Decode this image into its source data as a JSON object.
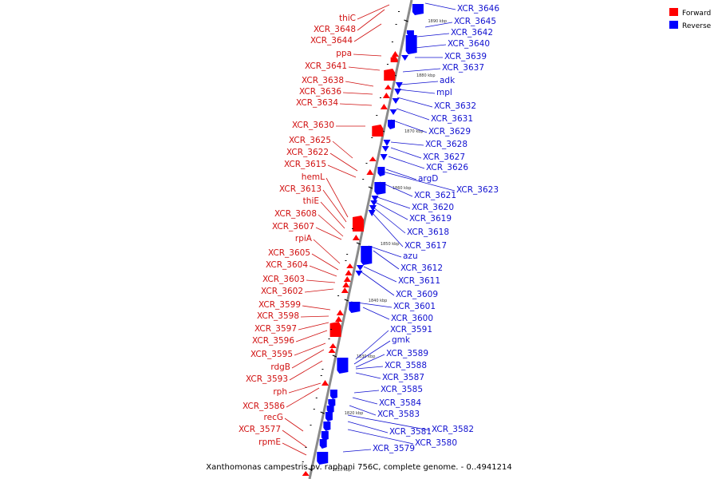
{
  "caption": "Xanthomonas campestris pv. raphani 756C, complete genome. - 0..4941214",
  "colors": {
    "forward": "#ff0000",
    "reverse": "#0000ff",
    "forward_label": "#d01010",
    "reverse_label": "#1010d0",
    "backbone": "#888888"
  },
  "legend": [
    {
      "name": "Forward",
      "color": "#ff0000"
    },
    {
      "name": "Reverse",
      "color": "#0000ff"
    }
  ],
  "ticks": [
    "1890 kbp",
    "1880 kbp",
    "1870 kbp",
    "1860 kbp",
    "1850 kbp",
    "1840 kbp",
    "1830 kbp",
    "1820 kbp",
    "1810 kbp"
  ],
  "forward_genes": [
    "thiC",
    "XCR_3648",
    "XCR_3644",
    "ppa",
    "XCR_3641",
    "XCR_3638",
    "XCR_3636",
    "XCR_3634",
    "XCR_3630",
    "XCR_3625",
    "XCR_3622",
    "XCR_3615",
    "hemL",
    "XCR_3613",
    "thiE",
    "XCR_3608",
    "XCR_3607",
    "rpiA",
    "XCR_3605",
    "XCR_3604",
    "XCR_3603",
    "XCR_3602",
    "XCR_3599",
    "XCR_3598",
    "XCR_3597",
    "XCR_3596",
    "XCR_3595",
    "rdgB",
    "XCR_3593",
    "rph",
    "XCR_3586",
    "recG",
    "XCR_3577",
    "rpmE"
  ],
  "reverse_genes": [
    "XCR_3646",
    "XCR_3645",
    "XCR_3642",
    "XCR_3640",
    "XCR_3639",
    "XCR_3637",
    "adk",
    "mpl",
    "XCR_3632",
    "XCR_3631",
    "XCR_3629",
    "XCR_3628",
    "XCR_3627",
    "XCR_3626",
    "argD",
    "XCR_3623",
    "XCR_3621",
    "XCR_3620",
    "XCR_3619",
    "XCR_3618",
    "XCR_3617",
    "azu",
    "XCR_3612",
    "XCR_3611",
    "XCR_3609",
    "XCR_3601",
    "XCR_3600",
    "XCR_3591",
    "gmk",
    "XCR_3589",
    "XCR_3588",
    "XCR_3587",
    "XCR_3585",
    "XCR_3584",
    "XCR_3583",
    "XCR_3582",
    "XCR_3581",
    "XCR_3580",
    "XCR_3579"
  ]
}
